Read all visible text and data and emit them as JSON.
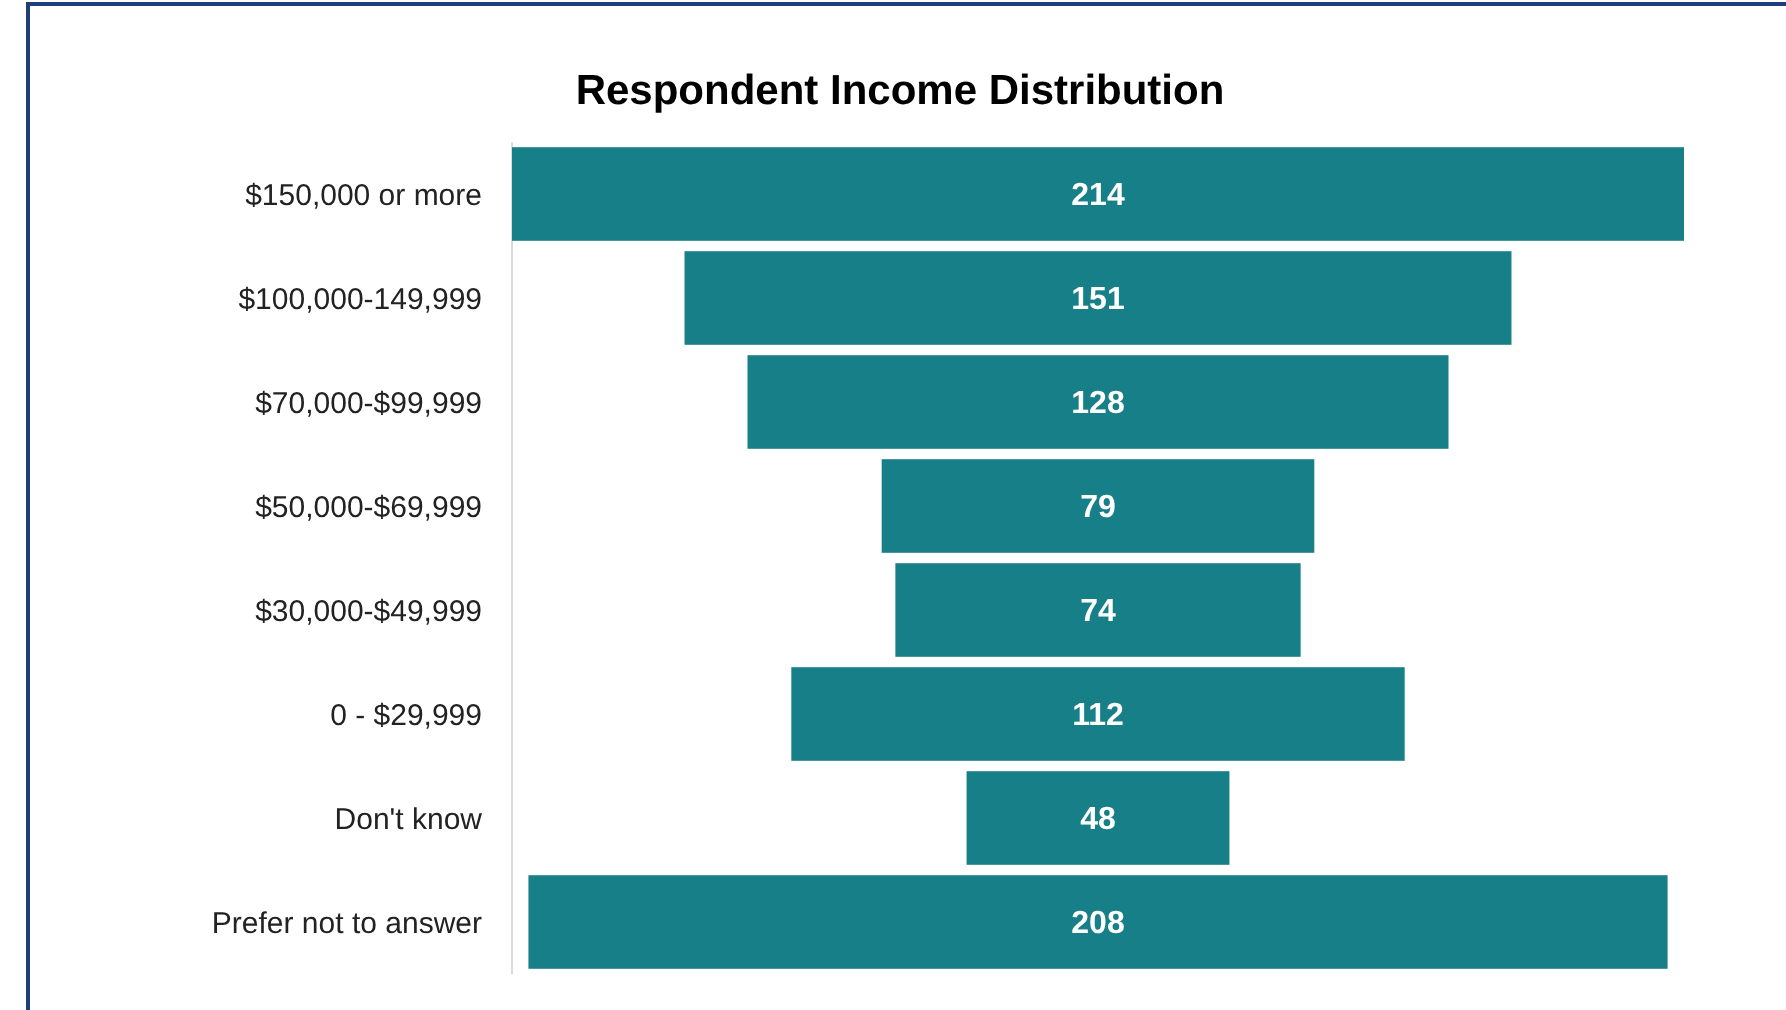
{
  "chart_data": {
    "type": "other",
    "title": "Respondent Income Distribution",
    "categories": [
      "$150,000 or more",
      "$100,000-149,999",
      "$70,000-$99,999",
      "$50,000-$69,999",
      "$30,000-$49,999",
      "0 - $29,999",
      "Don't know",
      "Prefer not to answer"
    ],
    "values": [
      214,
      151,
      128,
      79,
      74,
      112,
      48,
      208
    ],
    "color": "#177f87",
    "data_labels": true
  }
}
